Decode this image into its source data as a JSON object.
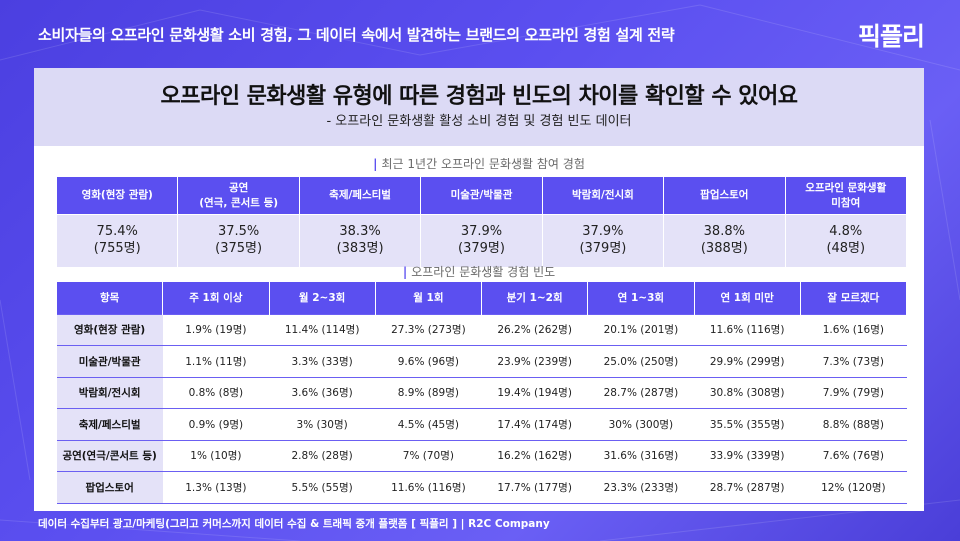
{
  "header": {
    "title": "소비자들의 오프라인 문화생활 소비 경험, 그 데이터 속에서 발견하는 브랜드의 오프라인 경험 설계 전략",
    "logo": "픽플리"
  },
  "hero": {
    "title": "오프라인 문화생활 유형에 따른 경험과 빈도의 차이를 확인할 수 있어요",
    "subtitle": "- 오프라인 문화생활 활성 소비 경험 및 경험 빈도 데이터"
  },
  "experience": {
    "section_label": "최근 1년간 오프라인 문화생활 참여 경험",
    "columns": [
      {
        "name": "영화(현장 관람)",
        "name2": "",
        "pct": "75.4%",
        "count": "(755명)"
      },
      {
        "name": "공연",
        "name2": "(연극, 콘서트 등)",
        "pct": "37.5%",
        "count": "(375명)"
      },
      {
        "name": "축제/페스티벌",
        "name2": "",
        "pct": "38.3%",
        "count": "(383명)"
      },
      {
        "name": "미술관/박물관",
        "name2": "",
        "pct": "37.9%",
        "count": "(379명)"
      },
      {
        "name": "박람회/전시회",
        "name2": "",
        "pct": "37.9%",
        "count": "(379명)"
      },
      {
        "name": "팝업스토어",
        "name2": "",
        "pct": "38.8%",
        "count": "(388명)"
      },
      {
        "name": "오프라인 문화생활",
        "name2": "미참여",
        "pct": "4.8%",
        "count": "(48명)"
      }
    ]
  },
  "frequency": {
    "section_label": "오프라인 문화생활 경험 빈도",
    "headers": [
      "항목",
      "주 1회 이상",
      "월 2~3회",
      "월 1회",
      "분기 1~2회",
      "연 1~3회",
      "연 1회 미만",
      "잘 모르겠다"
    ],
    "rows": [
      [
        "영화(현장 관람)",
        "1.9% (19명)",
        "11.4% (114명)",
        "27.3% (273명)",
        "26.2% (262명)",
        "20.1% (201명)",
        "11.6% (116명)",
        "1.6% (16명)"
      ],
      [
        "미술관/박물관",
        "1.1% (11명)",
        "3.3% (33명)",
        "9.6% (96명)",
        "23.9% (239명)",
        "25.0% (250명)",
        "29.9% (299명)",
        "7.3% (73명)"
      ],
      [
        "박람회/전시회",
        "0.8% (8명)",
        "3.6% (36명)",
        "8.9% (89명)",
        "19.4% (194명)",
        "28.7% (287명)",
        "30.8% (308명)",
        "7.9% (79명)"
      ],
      [
        "축제/페스티벌",
        "0.9% (9명)",
        "3% (30명)",
        "4.5% (45명)",
        "17.4% (174명)",
        "30% (300명)",
        "35.5% (355명)",
        "8.8% (88명)"
      ],
      [
        "공연(연극/콘서트 등)",
        "1% (10명)",
        "2.8% (28명)",
        "7% (70명)",
        "16.2% (162명)",
        "31.6% (316명)",
        "33.9% (339명)",
        "7.6% (76명)"
      ],
      [
        "팝업스토어",
        "1.3% (13명)",
        "5.5% (55명)",
        "11.6% (116명)",
        "17.7% (177명)",
        "23.3% (233명)",
        "28.7% (287명)",
        "12% (120명)"
      ]
    ]
  },
  "footer": {
    "text": "데이터 수집부터 광고/마케팅(그리고 커머스까지 데이터 수집 & 트래픽 중개 플랫폼 [ 픽플리 ]  |  R2C Company"
  },
  "colors": {
    "accent": "#5b4ff0",
    "light": "#e4e2f8",
    "hero_bg": "#dcdaf5"
  }
}
